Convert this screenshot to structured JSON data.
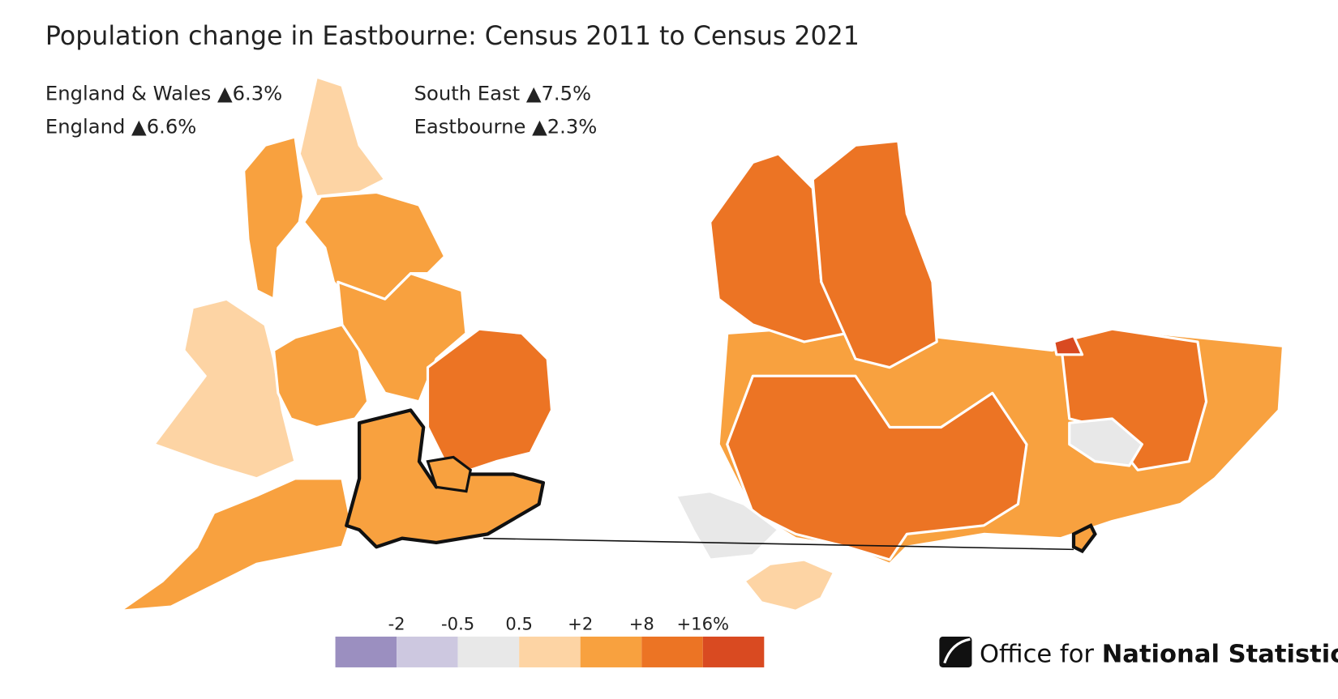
{
  "title": "Population change in Eastbourne: Census 2011 to Census 2021",
  "stats": [
    "England & Wales ▲6.3%",
    "England ▲6.6%",
    "South East ▲7.5%",
    "Eastbourne ▲2.3%"
  ],
  "legend": {
    "labels": [
      "-2",
      "-0.5",
      "0.5",
      "+2",
      "+8",
      "+16%"
    ],
    "colors": [
      "#9b8fc0",
      "#cdc8e0",
      "#e8e8e8",
      "#fdd4a4",
      "#f8a13f",
      "#ec7424",
      "#d94a21"
    ]
  },
  "logo": {
    "light": "Office for",
    "bold": "National Statistics"
  }
}
